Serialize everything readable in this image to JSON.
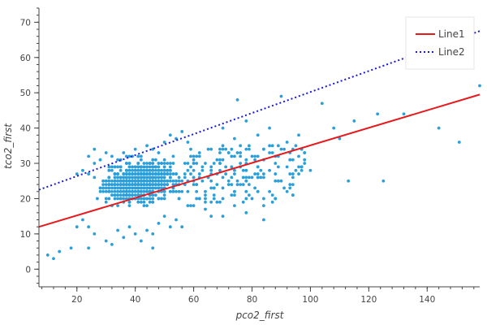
{
  "chart_data": {
    "type": "scatter",
    "title": "",
    "xlabel": "pco2_first",
    "ylabel": "tco2_first",
    "xlim": [
      7,
      158
    ],
    "ylim": [
      -5,
      74
    ],
    "x_ticks": [
      20,
      40,
      60,
      80,
      100,
      120,
      140
    ],
    "y_ticks": [
      0,
      10,
      20,
      30,
      40,
      50,
      60,
      70
    ],
    "grid": false,
    "legend_position": "top-right",
    "colors": {
      "points": "#2b9fd9",
      "line1": "#e8191c",
      "line2": "#1818e0",
      "axis": "#444444"
    },
    "series": [
      {
        "type": "scatter",
        "points": [
          [
            10,
            4
          ],
          [
            12,
            3
          ],
          [
            14,
            5
          ],
          [
            18,
            6
          ],
          [
            20,
            12
          ],
          [
            22,
            14
          ],
          [
            24,
            12
          ],
          [
            26,
            10
          ],
          [
            24,
            6
          ],
          [
            30,
            8
          ],
          [
            32,
            7
          ],
          [
            34,
            11
          ],
          [
            36,
            9
          ],
          [
            38,
            12
          ],
          [
            40,
            10
          ],
          [
            42,
            8
          ],
          [
            44,
            11
          ],
          [
            46,
            10
          ],
          [
            46,
            6
          ],
          [
            48,
            13
          ],
          [
            50,
            15
          ],
          [
            52,
            12
          ],
          [
            54,
            14
          ],
          [
            56,
            12
          ],
          [
            58,
            18
          ],
          [
            20,
            27
          ],
          [
            22,
            28
          ],
          [
            24,
            32
          ],
          [
            26,
            30
          ],
          [
            26,
            34
          ],
          [
            28,
            31
          ],
          [
            30,
            33
          ],
          [
            32,
            32
          ],
          [
            34,
            31
          ],
          [
            36,
            33
          ],
          [
            38,
            32
          ],
          [
            40,
            34
          ],
          [
            42,
            32
          ],
          [
            44,
            35
          ],
          [
            46,
            34
          ],
          [
            48,
            33
          ],
          [
            50,
            36
          ],
          [
            52,
            38
          ],
          [
            54,
            37
          ],
          [
            56,
            39
          ],
          [
            58,
            36
          ],
          [
            60,
            30
          ],
          [
            62,
            32
          ],
          [
            64,
            30
          ],
          [
            66,
            28
          ],
          [
            68,
            31
          ],
          [
            70,
            35
          ],
          [
            72,
            33
          ],
          [
            74,
            37
          ],
          [
            76,
            30
          ],
          [
            78,
            28
          ],
          [
            80,
            32
          ],
          [
            82,
            29
          ],
          [
            84,
            31
          ],
          [
            86,
            33
          ],
          [
            88,
            30
          ],
          [
            90,
            34
          ],
          [
            92,
            36
          ],
          [
            94,
            31
          ],
          [
            96,
            29
          ],
          [
            98,
            33
          ],
          [
            60,
            24
          ],
          [
            62,
            26
          ],
          [
            64,
            22
          ],
          [
            66,
            25
          ],
          [
            68,
            27
          ],
          [
            70,
            23
          ],
          [
            72,
            25
          ],
          [
            74,
            21
          ],
          [
            76,
            24
          ],
          [
            78,
            26
          ],
          [
            80,
            20
          ],
          [
            82,
            22
          ],
          [
            84,
            18
          ],
          [
            88,
            25
          ],
          [
            92,
            22
          ],
          [
            96,
            27
          ],
          [
            60,
            18
          ],
          [
            62,
            20
          ],
          [
            64,
            17
          ],
          [
            66,
            15
          ],
          [
            68,
            19
          ],
          [
            70,
            15
          ],
          [
            74,
            18
          ],
          [
            78,
            16
          ],
          [
            84,
            14
          ],
          [
            75,
            48
          ],
          [
            90,
            49
          ],
          [
            104,
            47
          ],
          [
            108,
            40
          ],
          [
            115,
            42
          ],
          [
            123,
            44
          ],
          [
            132,
            44
          ],
          [
            144,
            40
          ],
          [
            151,
            36
          ],
          [
            158,
            52
          ],
          [
            110,
            37
          ],
          [
            113,
            25
          ],
          [
            125,
            25
          ],
          [
            100,
            28
          ],
          [
            96,
            38
          ],
          [
            86,
            40
          ],
          [
            82,
            38
          ],
          [
            78,
            42
          ],
          [
            70,
            40
          ]
        ]
      },
      {
        "type": "line",
        "name": "Line1",
        "style": "solid",
        "x": [
          7,
          158
        ],
        "y": [
          12,
          49.5
        ]
      },
      {
        "type": "line",
        "name": "Line2",
        "style": "dotted",
        "x": [
          7,
          158
        ],
        "y": [
          22.5,
          67.5
        ]
      }
    ]
  }
}
